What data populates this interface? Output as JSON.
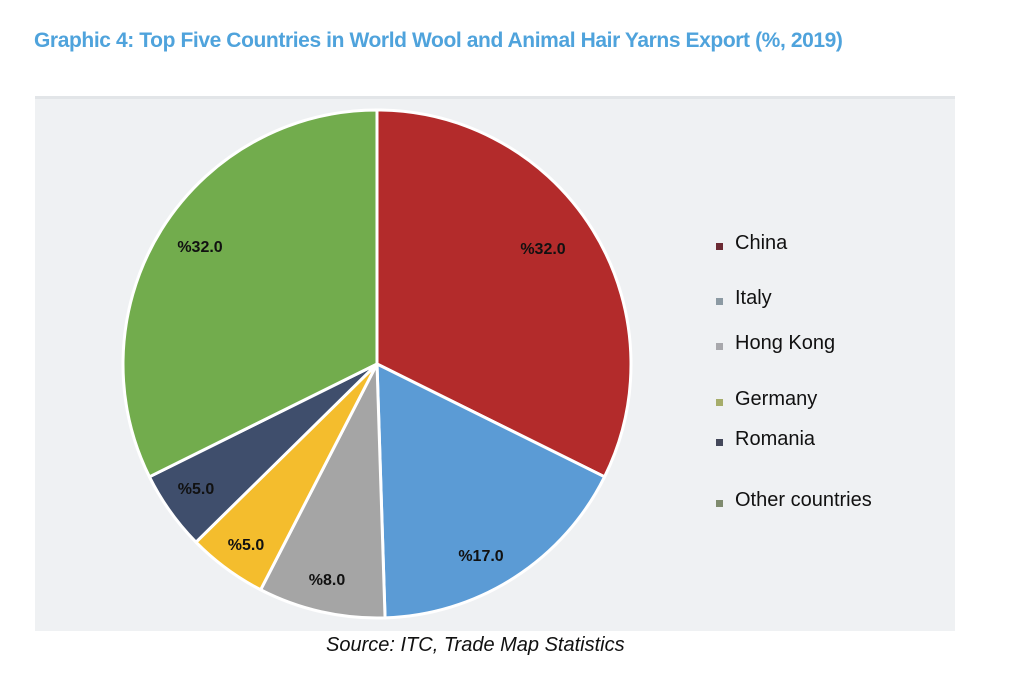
{
  "header": {
    "title": "Graphic 4: Top Five Countries in World Wool and Animal Hair Yarns Export (%, 2019)"
  },
  "footer": {
    "source": "Source: ITC, Trade Map Statistics"
  },
  "colors": {
    "title": "#4fa3dc",
    "China": "#b32b2b",
    "Italy": "#5b9bd5",
    "Hong Kong": "#a5a5a5",
    "Germany": "#f4bd2d",
    "Romania": "#3f4e6c",
    "Other countries": "#72ac4d"
  },
  "legend": {
    "items": [
      {
        "label": "China",
        "color": "#6b2a33"
      },
      {
        "label": "Italy",
        "color": "#8c9aa3"
      },
      {
        "label": "Hong Kong",
        "color": "#a8a8ac"
      },
      {
        "label": "Germany",
        "color": "#a6ad6a"
      },
      {
        "label": "Romania",
        "color": "#44485a"
      },
      {
        "label": "Other countries",
        "color": "#7f8b6e"
      }
    ]
  },
  "chart_data": {
    "type": "pie",
    "title": "Graphic 4: Top Five Countries in World Wool and Animal Hair Yarns Export (%, 2019)",
    "categories": [
      "China",
      "Italy",
      "Hong Kong",
      "Germany",
      "Romania",
      "Other countries"
    ],
    "values": [
      32.0,
      17.0,
      8.0,
      5.0,
      5.0,
      32.0
    ],
    "data_labels": [
      "%32.0",
      "%17.0",
      "%8.0",
      "%5.0",
      "%5.0",
      "%32.0"
    ],
    "colors": [
      "#b32b2b",
      "#5b9bd5",
      "#a5a5a5",
      "#f4bd2d",
      "#3f4e6c",
      "#72ac4d"
    ],
    "start_angle_deg": 0,
    "direction": "clockwise",
    "legend_position": "right",
    "unit": "%",
    "source": "Source: ITC, Trade Map Statistics"
  }
}
